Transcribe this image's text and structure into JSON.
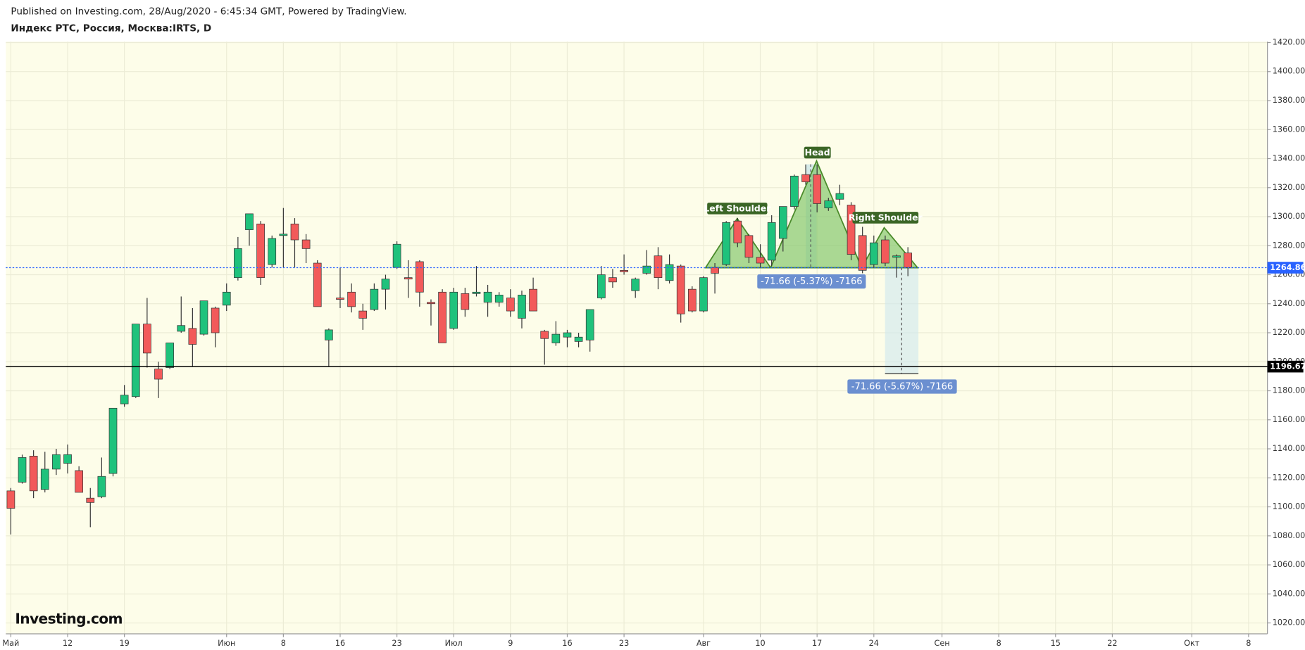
{
  "chart_data": {
    "type": "candlestick",
    "title": "Индекс РТС, Россия, Москва:IRTS, D",
    "subtitle": "Published on Investing.com, 28/Aug/2020 - 6:45:34 GMT, Powered by TradingView.",
    "logo": "Investing.com",
    "up_color": "#1fc27c",
    "down_color": "#f25a5a",
    "grid": true,
    "x": [
      0,
      1,
      2,
      3,
      4,
      5,
      6,
      7,
      8,
      9,
      10,
      11,
      12,
      13,
      14,
      15,
      16,
      17,
      18,
      19,
      20,
      21,
      22,
      23,
      24,
      25,
      26,
      27,
      28,
      29,
      30,
      31,
      32,
      33,
      34,
      35,
      36,
      37,
      38,
      39,
      40,
      41,
      42,
      43,
      44,
      45,
      46,
      47,
      48,
      49,
      50,
      51,
      52,
      53,
      54,
      55,
      56,
      57,
      58,
      59,
      60,
      61,
      62,
      63,
      64,
      65,
      66,
      67,
      68,
      69,
      70,
      71,
      72,
      73,
      74,
      75,
      76,
      77,
      78,
      79
    ],
    "open": [
      1111,
      1117,
      1135,
      1112,
      1126,
      1130,
      1125,
      1106,
      1107,
      1123,
      1171,
      1176,
      1226,
      1195,
      1196,
      1221,
      1223,
      1219,
      1237,
      1239,
      1258,
      1291,
      1295,
      1267,
      1287,
      1295,
      1284,
      1268,
      1215,
      1244,
      1248,
      1235,
      1236,
      1250,
      1265,
      1258,
      1269,
      1241,
      1248,
      1223,
      1247,
      1247,
      1241,
      1241,
      1244,
      1230,
      1250,
      1221,
      1213,
      1217,
      1214,
      1215,
      1244,
      1258,
      1263,
      1249,
      1261,
      1273,
      1256,
      1266,
      1250,
      1235,
      1265,
      1267,
      1297,
      1287,
      1272,
      1270,
      1285,
      1307,
      1329,
      1329,
      1306,
      1312,
      1308,
      1287,
      1267,
      1284,
      1272,
      1275
    ],
    "high": [
      1113,
      1136,
      1139,
      1138,
      1140,
      1143,
      1128,
      1113,
      1134,
      1168,
      1184,
      1226,
      1244,
      1200,
      1213,
      1245,
      1237,
      1242,
      1238,
      1254,
      1286,
      1302,
      1297,
      1287,
      1306,
      1299,
      1288,
      1270,
      1223,
      1265,
      1254,
      1240,
      1254,
      1260,
      1283,
      1270,
      1270,
      1243,
      1250,
      1251,
      1251,
      1266,
      1253,
      1248,
      1250,
      1249,
      1258,
      1222,
      1228,
      1222,
      1220,
      1236,
      1266,
      1264,
      1274,
      1258,
      1277,
      1279,
      1274,
      1267,
      1252,
      1259,
      1268,
      1297,
      1299,
      1288,
      1281,
      1301,
      1307,
      1329,
      1336,
      1336,
      1313,
      1322,
      1310,
      1293,
      1287,
      1287,
      1274,
      1279
    ],
    "low": [
      1081,
      1116,
      1106,
      1110,
      1122,
      1123,
      1110,
      1086,
      1106,
      1121,
      1169,
      1175,
      1196,
      1175,
      1195,
      1220,
      1197,
      1218,
      1210,
      1235,
      1256,
      1280,
      1253,
      1265,
      1265,
      1265,
      1268,
      1238,
      1197,
      1237,
      1234,
      1222,
      1235,
      1236,
      1264,
      1244,
      1238,
      1225,
      1213,
      1222,
      1231,
      1245,
      1231,
      1238,
      1231,
      1223,
      1235,
      1198,
      1211,
      1210,
      1210,
      1207,
      1243,
      1251,
      1260,
      1244,
      1260,
      1250,
      1254,
      1227,
      1234,
      1234,
      1247,
      1266,
      1279,
      1268,
      1265,
      1266,
      1276,
      1305,
      1322,
      1303,
      1304,
      1308,
      1270,
      1261,
      1265,
      1266,
      1258,
      1259
    ],
    "close": [
      1099,
      1134,
      1111,
      1126,
      1136,
      1136,
      1110,
      1103,
      1121,
      1168,
      1177,
      1226,
      1206,
      1188,
      1213,
      1225,
      1212,
      1242,
      1220,
      1248,
      1278,
      1302,
      1258,
      1285,
      1288,
      1284,
      1278,
      1238,
      1222,
      1243,
      1238,
      1230,
      1250,
      1257,
      1281,
      1257,
      1248,
      1240,
      1213,
      1248,
      1236,
      1248,
      1248,
      1246,
      1235,
      1246,
      1235,
      1216,
      1219,
      1220,
      1217,
      1236,
      1260,
      1255,
      1262,
      1257,
      1266,
      1258,
      1267,
      1233,
      1235,
      1258,
      1261,
      1296,
      1282,
      1272,
      1268,
      1296,
      1307,
      1328,
      1324,
      1309,
      1311,
      1316,
      1274,
      1263,
      1282,
      1268,
      1273,
      1265
    ],
    "xlim": [
      -0.44,
      110.66
    ],
    "xticks": [
      {
        "value": 0,
        "label": "Май"
      },
      {
        "value": 5,
        "label": "12"
      },
      {
        "value": 10,
        "label": "19"
      },
      {
        "value": 19,
        "label": "Июн"
      },
      {
        "value": 24,
        "label": "8"
      },
      {
        "value": 29,
        "label": "16"
      },
      {
        "value": 34,
        "label": "23"
      },
      {
        "value": 39,
        "label": "Июл"
      },
      {
        "value": 44,
        "label": "9"
      },
      {
        "value": 49,
        "label": "16"
      },
      {
        "value": 54,
        "label": "23"
      },
      {
        "value": 61,
        "label": "Авг"
      },
      {
        "value": 66,
        "label": "10"
      },
      {
        "value": 71,
        "label": "17"
      },
      {
        "value": 76,
        "label": "24"
      },
      {
        "value": 82,
        "label": "Сен"
      },
      {
        "value": 87,
        "label": "8"
      },
      {
        "value": 92,
        "label": "15"
      },
      {
        "value": 97,
        "label": "22"
      },
      {
        "value": 104,
        "label": "Окт"
      },
      {
        "value": 109,
        "label": "8"
      }
    ],
    "ylim": [
      1012.5,
      1420.6
    ],
    "yticks": [
      {
        "value": 1020,
        "label": "1020.00"
      },
      {
        "value": 1040,
        "label": "1040.00"
      },
      {
        "value": 1060,
        "label": "1060.00"
      },
      {
        "value": 1080,
        "label": "1080.00"
      },
      {
        "value": 1100,
        "label": "1100.00"
      },
      {
        "value": 1120,
        "label": "1120.00"
      },
      {
        "value": 1140,
        "label": "1140.00"
      },
      {
        "value": 1160,
        "label": "1160.00"
      },
      {
        "value": 1180,
        "label": "1180.00"
      },
      {
        "value": 1200,
        "label": "1200.00"
      },
      {
        "value": 1220,
        "label": "1220.00"
      },
      {
        "value": 1240,
        "label": "1240.00"
      },
      {
        "value": 1260,
        "label": "1260.00"
      },
      {
        "value": 1280,
        "label": "1280.00"
      },
      {
        "value": 1300,
        "label": "1300.00"
      },
      {
        "value": 1320,
        "label": "1320.00"
      },
      {
        "value": 1340,
        "label": "1340.00"
      },
      {
        "value": 1360,
        "label": "1360.00"
      },
      {
        "value": 1380,
        "label": "1380.00"
      },
      {
        "value": 1400,
        "label": "1400.00"
      },
      {
        "value": 1420,
        "label": "1420.00"
      }
    ],
    "hlines": [
      {
        "value": 1264.86,
        "color": "#2962ff",
        "dashed": true
      },
      {
        "value": 1196.67,
        "color": "#000000",
        "dashed": false
      }
    ],
    "annotations": [
      "Left Shoulder",
      "Head",
      "Right Shoulder",
      "-71.66 (-5.37%) -7166",
      "-71.66 (-5.67%) -7166"
    ]
  }
}
